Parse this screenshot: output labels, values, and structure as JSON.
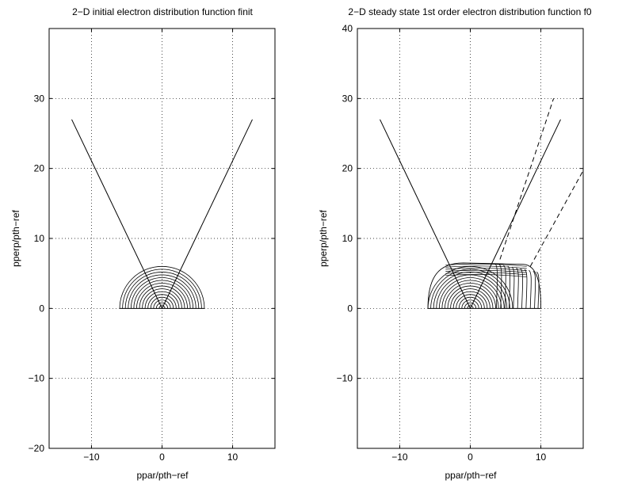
{
  "chart_data": [
    {
      "type": "contour",
      "title": "2−D initial electron distribution function finit",
      "xlabel": "ppar/pth−ref",
      "ylabel": "pperp/pth−ref",
      "xlim": [
        -16,
        16
      ],
      "ylim": [
        -20,
        40
      ],
      "xticks": [
        -10,
        0,
        10
      ],
      "yticks": [
        -20,
        -10,
        0,
        10,
        20,
        30
      ],
      "xtick_labels": [
        "−10",
        "0",
        "10"
      ],
      "ytick_labels": [
        "−20",
        "−10",
        "0",
        "10",
        "20",
        "30"
      ],
      "grid": true,
      "trapped_passing_boundary": [
        [
          -12.8,
          27
        ],
        [
          0,
          0
        ],
        [
          12.8,
          27
        ]
      ],
      "contours": {
        "shape": "semicircle",
        "center": [
          0,
          0
        ],
        "radii": [
          0.4,
          0.8,
          1.2,
          1.6,
          2.0,
          2.4,
          2.8,
          3.2,
          3.6,
          4.0,
          4.4,
          4.8,
          5.2,
          5.6,
          6.0
        ]
      }
    },
    {
      "type": "contour",
      "title": "2−D steady state 1st order electron distribution function f0",
      "xlabel": "ppar/pth−ref",
      "ylabel": "pperp/pth−ref",
      "xlim": [
        -16,
        16
      ],
      "ylim": [
        -20,
        40
      ],
      "xticks": [
        -10,
        0,
        10
      ],
      "yticks": [
        -10,
        0,
        10,
        20,
        30,
        40
      ],
      "xtick_labels": [
        "−10",
        "0",
        "10"
      ],
      "ytick_labels": [
        "−10",
        "0",
        "10",
        "20",
        "30",
        "40"
      ],
      "grid": true,
      "trapped_passing_boundary": [
        [
          -12.8,
          27
        ],
        [
          0,
          0
        ],
        [
          12.8,
          27
        ]
      ],
      "dashed_lines": [
        [
          [
            4.2,
            7
          ],
          [
            11.8,
            30
          ]
        ],
        [
          [
            8.5,
            6
          ],
          [
            16,
            19.7
          ]
        ]
      ],
      "contours": {
        "shape": "distorted",
        "x_min": -6,
        "x_max": 10,
        "y_max": 6.5
      }
    }
  ]
}
